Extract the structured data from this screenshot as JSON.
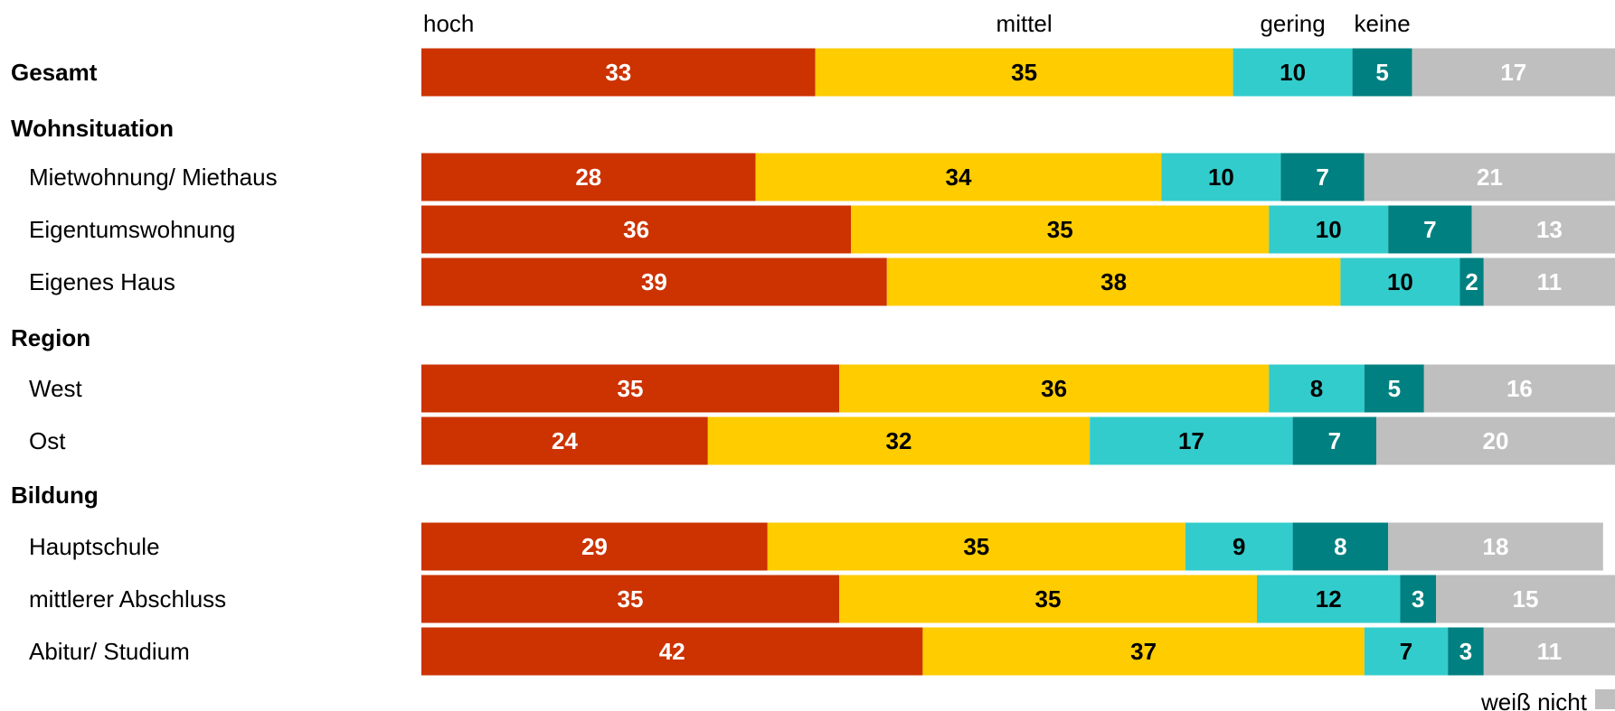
{
  "chart_data": {
    "type": "bar",
    "orientation": "horizontal",
    "stacked": true,
    "xlim": [
      0,
      100
    ],
    "grid": false,
    "legend_position": "top",
    "series": [
      {
        "name": "hoch",
        "color": "#CC3300",
        "label_color": "#FFFFFF"
      },
      {
        "name": "mittel",
        "color": "#FFCC00",
        "label_color": "#000000"
      },
      {
        "name": "gering",
        "color": "#33CCCC",
        "label_color": "#000000"
      },
      {
        "name": "keine",
        "color": "#008080",
        "label_color": "#FFFFFF"
      },
      {
        "name": "weiß nicht",
        "color": "#BFBFBF",
        "label_color": "#FFFFFF"
      }
    ],
    "rows": [
      {
        "kind": "category",
        "label": "Gesamt",
        "bold": true,
        "values": [
          33,
          35,
          10,
          5,
          17
        ]
      },
      {
        "kind": "group",
        "label": "Wohnsituation"
      },
      {
        "kind": "category",
        "label": "Mietwohnung/ Miethaus",
        "values": [
          28,
          34,
          10,
          7,
          21
        ]
      },
      {
        "kind": "category",
        "label": "Eigentumswohnung",
        "values": [
          36,
          35,
          10,
          7,
          13
        ]
      },
      {
        "kind": "category",
        "label": "Eigenes Haus",
        "values": [
          39,
          38,
          10,
          2,
          11
        ]
      },
      {
        "kind": "group",
        "label": "Region"
      },
      {
        "kind": "category",
        "label": "West",
        "values": [
          35,
          36,
          8,
          5,
          16
        ]
      },
      {
        "kind": "category",
        "label": "Ost",
        "values": [
          24,
          32,
          17,
          7,
          20
        ]
      },
      {
        "kind": "group",
        "label": "Bildung"
      },
      {
        "kind": "category",
        "label": "Hauptschule",
        "values": [
          29,
          35,
          9,
          8,
          18
        ]
      },
      {
        "kind": "category",
        "label": "mittlerer Abschluss",
        "values": [
          35,
          35,
          12,
          3,
          15
        ]
      },
      {
        "kind": "category",
        "label": "Abitur/ Studium",
        "values": [
          42,
          37,
          7,
          3,
          11
        ]
      }
    ]
  }
}
